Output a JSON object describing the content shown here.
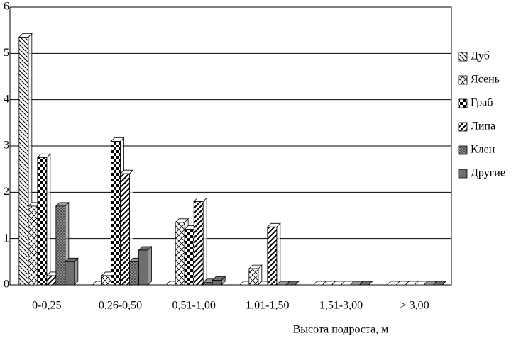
{
  "chart_data": {
    "type": "bar",
    "x_label": "Высота подроста, м",
    "categories": [
      "0-0,25",
      "0,26-0,50",
      "0,51-1,00",
      "1,01-1,50",
      "1,51-3,00",
      "> 3,00"
    ],
    "series": [
      {
        "name": "Дуб",
        "color": "#ffffff",
        "values": [
          5.35,
          0,
          0,
          0,
          0,
          0
        ]
      },
      {
        "name": "Ясень",
        "color": "#ffffff",
        "values": [
          1.7,
          0.2,
          1.35,
          0.35,
          0,
          0
        ]
      },
      {
        "name": "Граб",
        "color": "#ffffff",
        "values": [
          2.75,
          3.1,
          1.2,
          0,
          0,
          0
        ]
      },
      {
        "name": "Липа",
        "color": "#ffffff",
        "values": [
          0.2,
          2.4,
          1.8,
          1.25,
          0,
          0
        ]
      },
      {
        "name": "Клен",
        "color": "#9a9a9a",
        "values": [
          1.7,
          0.5,
          0.05,
          0,
          0,
          0
        ]
      },
      {
        "name": "Другие",
        "color": "#6e6e6e",
        "values": [
          0.5,
          0.75,
          0.1,
          0,
          0,
          0
        ]
      }
    ],
    "ylim": [
      0,
      6
    ],
    "yticks": [
      0,
      1,
      2,
      3,
      4,
      5,
      6
    ],
    "grid": true
  }
}
